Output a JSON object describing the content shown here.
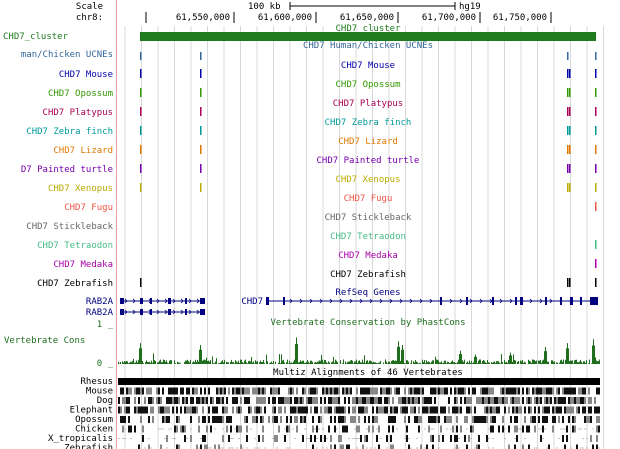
{
  "ruler": {
    "scale_label": "Scale",
    "scale_value": "100 kb",
    "assembly": "hg19",
    "chrom": "chr8:",
    "positions": [
      "61,550,000",
      "61,600,000",
      "61,650,000",
      "61,700,000",
      "61,750,000"
    ]
  },
  "cluster": {
    "side": "CHD7_cluster",
    "center": "CHD7_cluster"
  },
  "ucne": {
    "side": "man/Chicken UCNEs",
    "center": "CHD7 Human/Chicken UCNEs"
  },
  "species": [
    {
      "side": "CHD7 Mouse",
      "center": "CHD7 Mouse",
      "color": "#0000aa"
    },
    {
      "side": "CHD7 Opossum",
      "center": "CHD7 Opossum",
      "color": "#339900"
    },
    {
      "side": "CHD7 Platypus",
      "center": "CHD7 Platypus",
      "color": "#aa0055"
    },
    {
      "side": "CHD7 Zebra finch",
      "center": "CHD7 Zebra finch",
      "color": "#009999"
    },
    {
      "side": "CHD7 Lizard",
      "center": "CHD7 Lizard",
      "color": "#dd7700"
    },
    {
      "side": "D7 Painted turtle",
      "center": "CHD7 Painted turtle",
      "color": "#7700aa"
    },
    {
      "side": "CHD7 Xenopus",
      "center": "CHD7 Xenopus",
      "color": "#bbaa00"
    },
    {
      "side": "CHD7 Fugu",
      "center": "CHD7 Fugu",
      "color": "#ee5544"
    },
    {
      "side": "CHD7 Stickleback",
      "center": "CHD7 Stickleback",
      "color": "#666666"
    },
    {
      "side": "CHD7 Tetraodon",
      "center": "CHD7 Tetraodon",
      "color": "#44bb88"
    },
    {
      "side": "CHD7 Medaka",
      "center": "CHD7 Medaka",
      "color": "#aa00aa"
    },
    {
      "side": "CHD7 Zebrafish",
      "center": "CHD7 Zebrafish",
      "color": "#000000"
    }
  ],
  "refseq": {
    "title": "RefSeq Genes",
    "gene_left_1": "RAB2A",
    "gene_left_2": "RAB2A",
    "gene_main": "CHD7"
  },
  "conservation": {
    "title": "Vertebrate Conservation by PhastCons",
    "side": "Vertebrate Cons",
    "max": "1 _",
    "min": "0 _"
  },
  "multiz": {
    "title": "Multiz Alignments of 46 Vertebrates",
    "species": [
      {
        "name": "Rhesus",
        "color": "#000000"
      },
      {
        "name": "Mouse",
        "color": "#000000"
      },
      {
        "name": "Dog",
        "color": "#000000"
      },
      {
        "name": "Elephant",
        "color": "#000000"
      },
      {
        "name": "Opossum",
        "color": "#000000"
      },
      {
        "name": "Chicken",
        "color": "#000000"
      },
      {
        "name": "X_tropicalis",
        "color": "#000000"
      },
      {
        "name": "Zebrafish",
        "color": "#000000"
      }
    ]
  },
  "colors": {
    "cluster": "#1e7b1e",
    "ucne": "#336699",
    "gene": "#000080",
    "cons": "#1e6e1e",
    "grid": "#d8d8d8",
    "sidebar_border": "#e8a0a0"
  }
}
